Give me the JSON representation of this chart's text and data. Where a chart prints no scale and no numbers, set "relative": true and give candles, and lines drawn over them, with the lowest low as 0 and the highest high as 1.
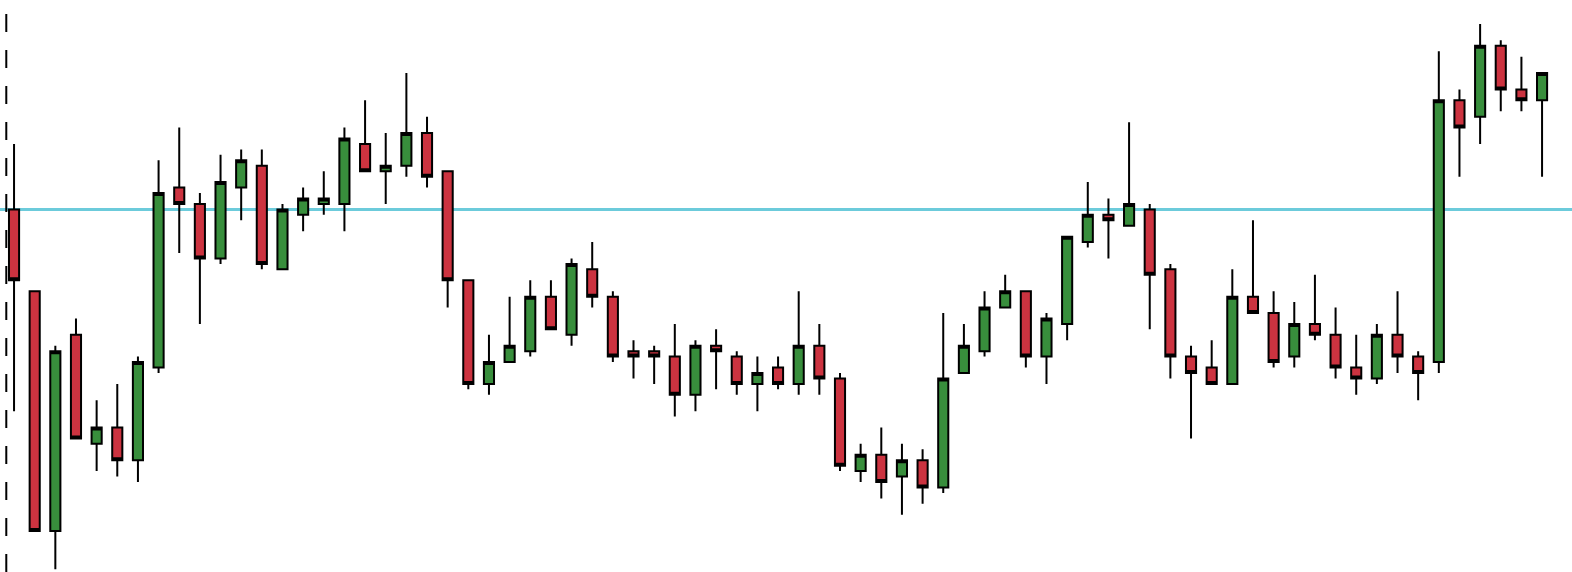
{
  "chart_data": {
    "type": "candlestick",
    "relative": true,
    "categories": [
      null,
      null,
      null,
      null,
      null,
      null,
      null,
      null,
      null,
      null,
      null,
      null,
      null,
      null,
      null,
      null,
      null,
      null,
      null,
      null,
      null,
      null,
      null,
      null,
      null,
      null,
      null,
      null,
      null,
      null,
      null,
      null,
      null,
      null,
      null,
      null,
      null,
      null,
      null,
      null,
      null,
      null,
      null,
      null,
      null,
      null,
      null,
      null,
      null,
      null,
      null,
      null,
      null,
      null,
      null,
      null,
      null,
      null,
      null,
      null,
      null,
      null,
      null,
      null,
      null,
      null,
      null,
      null,
      null,
      null,
      null,
      null,
      null,
      null,
      null
    ],
    "ohlc": [
      [
        0.66,
        0.78,
        0.29,
        0.53
      ],
      [
        0.51,
        0.51,
        0.07,
        0.07
      ],
      [
        0.07,
        0.41,
        0,
        0.4
      ],
      [
        0.43,
        0.46,
        0.24,
        0.24
      ],
      [
        0.23,
        0.31,
        0.18,
        0.26
      ],
      [
        0.26,
        0.34,
        0.17,
        0.2
      ],
      [
        0.2,
        0.39,
        0.16,
        0.38
      ],
      [
        0.37,
        0.75,
        0.36,
        0.69
      ],
      [
        0.7,
        0.81,
        0.58,
        0.67
      ],
      [
        0.67,
        0.69,
        0.45,
        0.57
      ],
      [
        0.57,
        0.76,
        0.56,
        0.71
      ],
      [
        0.7,
        0.77,
        0.64,
        0.75
      ],
      [
        0.74,
        0.77,
        0.55,
        0.56
      ],
      [
        0.55,
        0.67,
        0.55,
        0.66
      ],
      [
        0.65,
        0.7,
        0.62,
        0.68
      ],
      [
        0.67,
        0.73,
        0.65,
        0.68
      ],
      [
        0.67,
        0.81,
        0.62,
        0.79
      ],
      [
        0.78,
        0.86,
        0.73,
        0.73
      ],
      [
        0.73,
        0.8,
        0.67,
        0.74
      ],
      [
        0.74,
        0.91,
        0.72,
        0.8
      ],
      [
        0.8,
        0.83,
        0.7,
        0.72
      ],
      [
        0.73,
        0.73,
        0.48,
        0.53
      ],
      [
        0.53,
        0.53,
        0.33,
        0.34
      ],
      [
        0.34,
        0.43,
        0.32,
        0.38
      ],
      [
        0.38,
        0.5,
        0.38,
        0.41
      ],
      [
        0.4,
        0.53,
        0.39,
        0.5
      ],
      [
        0.5,
        0.53,
        0.44,
        0.44
      ],
      [
        0.43,
        0.57,
        0.41,
        0.56
      ],
      [
        0.55,
        0.6,
        0.48,
        0.5
      ],
      [
        0.5,
        0.51,
        0.38,
        0.39
      ],
      [
        0.4,
        0.42,
        0.35,
        0.39
      ],
      [
        0.4,
        0.41,
        0.34,
        0.39
      ],
      [
        0.39,
        0.45,
        0.28,
        0.32
      ],
      [
        0.32,
        0.42,
        0.29,
        0.41
      ],
      [
        0.41,
        0.44,
        0.33,
        0.4
      ],
      [
        0.39,
        0.4,
        0.32,
        0.34
      ],
      [
        0.34,
        0.39,
        0.29,
        0.36
      ],
      [
        0.37,
        0.39,
        0.33,
        0.34
      ],
      [
        0.34,
        0.51,
        0.32,
        0.41
      ],
      [
        0.41,
        0.45,
        0.32,
        0.35
      ],
      [
        0.35,
        0.36,
        0.18,
        0.19
      ],
      [
        0.18,
        0.23,
        0.16,
        0.21
      ],
      [
        0.21,
        0.26,
        0.13,
        0.16
      ],
      [
        0.17,
        0.23,
        0.1,
        0.2
      ],
      [
        0.2,
        0.22,
        0.12,
        0.15
      ],
      [
        0.15,
        0.47,
        0.14,
        0.35
      ],
      [
        0.36,
        0.45,
        0.36,
        0.41
      ],
      [
        0.4,
        0.51,
        0.39,
        0.48
      ],
      [
        0.48,
        0.54,
        0.48,
        0.51
      ],
      [
        0.51,
        0.51,
        0.37,
        0.39
      ],
      [
        0.39,
        0.47,
        0.34,
        0.46
      ],
      [
        0.45,
        0.61,
        0.42,
        0.61
      ],
      [
        0.6,
        0.71,
        0.59,
        0.65
      ],
      [
        0.65,
        0.68,
        0.57,
        0.64
      ],
      [
        0.63,
        0.82,
        0.63,
        0.67
      ],
      [
        0.66,
        0.67,
        0.44,
        0.54
      ],
      [
        0.55,
        0.56,
        0.35,
        0.39
      ],
      [
        0.39,
        0.41,
        0.24,
        0.36
      ],
      [
        0.37,
        0.42,
        0.34,
        0.34
      ],
      [
        0.34,
        0.55,
        0.34,
        0.5
      ],
      [
        0.5,
        0.64,
        0.47,
        0.47
      ],
      [
        0.47,
        0.51,
        0.37,
        0.38
      ],
      [
        0.39,
        0.49,
        0.37,
        0.45
      ],
      [
        0.45,
        0.54,
        0.42,
        0.43
      ],
      [
        0.43,
        0.48,
        0.35,
        0.37
      ],
      [
        0.37,
        0.43,
        0.32,
        0.35
      ],
      [
        0.35,
        0.45,
        0.34,
        0.43
      ],
      [
        0.43,
        0.51,
        0.36,
        0.39
      ],
      [
        0.39,
        0.4,
        0.31,
        0.36
      ],
      [
        0.38,
        0.95,
        0.36,
        0.86
      ],
      [
        0.86,
        0.88,
        0.72,
        0.81
      ],
      [
        0.83,
        1,
        0.78,
        0.96
      ],
      [
        0.96,
        0.97,
        0.84,
        0.88
      ],
      [
        0.88,
        0.94,
        0.84,
        0.86
      ],
      [
        0.86,
        0.91,
        0.72,
        0.91
      ]
    ],
    "colors": [
      "#cc3340",
      "#cc3340",
      "#388e3c",
      "#cc3340",
      "#388e3c",
      "#cc3340",
      "#388e3c",
      "#388e3c",
      "#cc3340",
      "#cc3340",
      "#388e3c",
      "#388e3c",
      "#cc3340",
      "#388e3c",
      "#388e3c",
      "#388e3c",
      "#388e3c",
      "#cc3340",
      "#388e3c",
      "#388e3c",
      "#cc3340",
      "#cc3340",
      "#cc3340",
      "#388e3c",
      "#388e3c",
      "#388e3c",
      "#cc3340",
      "#388e3c",
      "#cc3340",
      "#cc3340",
      "#cc3340",
      "#cc3340",
      "#cc3340",
      "#388e3c",
      "#cc3340",
      "#cc3340",
      "#388e3c",
      "#cc3340",
      "#388e3c",
      "#cc3340",
      "#cc3340",
      "#388e3c",
      "#cc3340",
      "#388e3c",
      "#cc3340",
      "#388e3c",
      "#388e3c",
      "#388e3c",
      "#388e3c",
      "#cc3340",
      "#388e3c",
      "#388e3c",
      "#388e3c",
      "#cc3340",
      "#388e3c",
      "#cc3340",
      "#cc3340",
      "#cc3340",
      "#cc3340",
      "#388e3c",
      "#cc3340",
      "#cc3340",
      "#388e3c",
      "#cc3340",
      "#cc3340",
      "#cc3340",
      "#388e3c",
      "#cc3340",
      "#cc3340",
      "#388e3c",
      "#cc3340",
      "#388e3c",
      "#cc3340",
      "#cc3340",
      "#388e3c"
    ],
    "ref_lines": [
      {
        "axis": "y",
        "value": 0.66,
        "color": "#6ccbdb"
      }
    ]
  }
}
